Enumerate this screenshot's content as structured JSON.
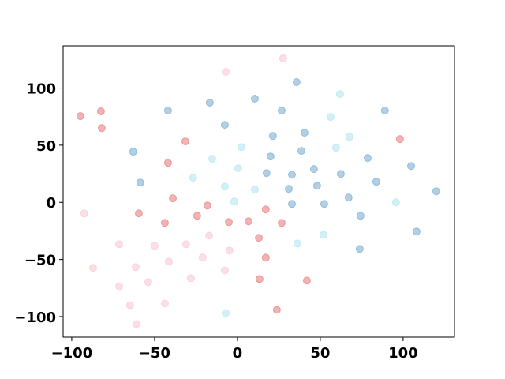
{
  "chart_data": {
    "type": "scatter",
    "xlim": [
      -105.2,
      131
    ],
    "ylim": [
      -118,
      137
    ],
    "xticks": [
      {
        "value": -100,
        "label": "−100"
      },
      {
        "value": -50,
        "label": "−50"
      },
      0,
      50,
      100
    ],
    "yticks": [
      {
        "value": -100,
        "label": "−100"
      },
      {
        "value": -50,
        "label": "−50"
      },
      0,
      50,
      100
    ],
    "grid": false,
    "alpha": 0.35,
    "series": [
      {
        "color": "#1f77b4",
        "x": [
          35.7,
          10.5,
          26.7,
          89,
          -41.9,
          -16.7,
          -7.6,
          40.5,
          21.4,
          -62.9,
          38.6,
          20,
          78.6,
          46.2,
          104.8,
          17.6,
          32.9,
          62.4,
          48.1,
          31,
          83.8,
          -58.6,
          67.1,
          120,
          32.9,
          52.4,
          74.3,
          108.1,
          73.8
        ],
        "values": [
          105.2,
          90.7,
          80.3,
          80.3,
          80.3,
          87.2,
          67.8,
          60.9,
          58.1,
          44.3,
          45,
          40.1,
          38.8,
          29.1,
          31.8,
          25.6,
          24.2,
          24.9,
          14.5,
          11.8,
          18,
          17.3,
          4.2,
          9.7,
          -1.4,
          -1.4,
          -11.8,
          -25.6,
          -40.8
        ]
      },
      {
        "color": "#7fd3e6",
        "x": [
          61.9,
          56.2,
          67.6,
          59.5,
          2.4,
          -15.2,
          0.5,
          -26.7,
          -7.6,
          10.5,
          -1.9,
          95.7,
          51.9,
          36.2,
          -7.1
        ],
        "values": [
          94.8,
          74.7,
          57.4,
          47.8,
          48.4,
          38.1,
          29.8,
          21.5,
          13.8,
          11.1,
          0.7,
          0,
          -28.4,
          -36,
          -96.9
        ]
      },
      {
        "color": "#d62728",
        "x": [
          -94.8,
          -82.4,
          -81.9,
          -31.4,
          98.1,
          -41.9,
          -39,
          -18.1,
          -59.5,
          -24.3,
          17.1,
          6.7,
          -5.2,
          -43.8,
          26.7,
          12.9,
          17.1,
          13.3,
          41.9,
          23.8
        ],
        "values": [
          75.4,
          79.6,
          65,
          53.3,
          55.4,
          34.6,
          3.5,
          -2.8,
          -9.7,
          -11.8,
          -6.2,
          -16.6,
          -17.3,
          -18,
          -18,
          -31.1,
          -48.4,
          -67.1,
          -68.5,
          -94.1
        ]
      },
      {
        "color": "#f7a1b5",
        "x": [
          -7.1,
          27.6,
          -92.4,
          -71.4,
          -50,
          -31,
          -17.1,
          -4.8,
          -41.4,
          -21,
          -61.4,
          -87.1,
          -7.6,
          -28.1,
          -53.8,
          -71.4,
          -64.8,
          -43.8,
          -61
        ],
        "values": [
          114.2,
          126,
          -9.7,
          -36.7,
          -38.1,
          -36.7,
          -29.1,
          -42.2,
          -51.9,
          -48.4,
          -56.7,
          -57.4,
          -59.5,
          -66.4,
          -69.9,
          -73.4,
          -90,
          -88.6,
          -106.6
        ]
      }
    ]
  }
}
